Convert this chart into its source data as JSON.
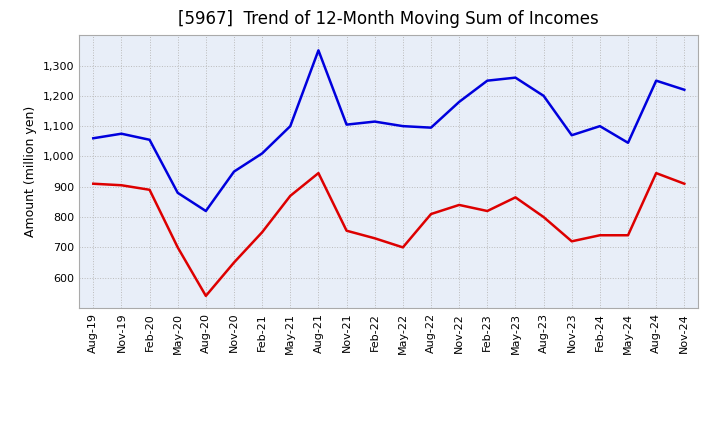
{
  "title": "[5967]  Trend of 12-Month Moving Sum of Incomes",
  "ylabel": "Amount (million yen)",
  "x_labels": [
    "Aug-19",
    "Nov-19",
    "Feb-20",
    "May-20",
    "Aug-20",
    "Nov-20",
    "Feb-21",
    "May-21",
    "Aug-21",
    "Nov-21",
    "Feb-22",
    "May-22",
    "Aug-22",
    "Nov-22",
    "Feb-23",
    "May-23",
    "Aug-23",
    "Nov-23",
    "Feb-24",
    "May-24",
    "Aug-24",
    "Nov-24"
  ],
  "ordinary_income": [
    1060,
    1075,
    1055,
    880,
    820,
    950,
    1010,
    1100,
    1350,
    1105,
    1115,
    1100,
    1095,
    1180,
    1250,
    1260,
    1200,
    1070,
    1100,
    1045,
    1250,
    1220
  ],
  "net_income": [
    910,
    905,
    890,
    700,
    540,
    650,
    750,
    870,
    945,
    755,
    730,
    700,
    810,
    840,
    820,
    865,
    800,
    720,
    740,
    740,
    945,
    910
  ],
  "ordinary_income_color": "#0000dd",
  "net_income_color": "#dd0000",
  "ylim_min": 500,
  "ylim_max": 1400,
  "yticks": [
    600,
    700,
    800,
    900,
    1000,
    1100,
    1200,
    1300
  ],
  "plot_bg_color": "#e8eef8",
  "fig_bg_color": "#ffffff",
  "grid_color": "#bbbbbb",
  "title_fontsize": 12,
  "axis_label_fontsize": 8,
  "ylabel_fontsize": 9,
  "legend_fontsize": 9
}
